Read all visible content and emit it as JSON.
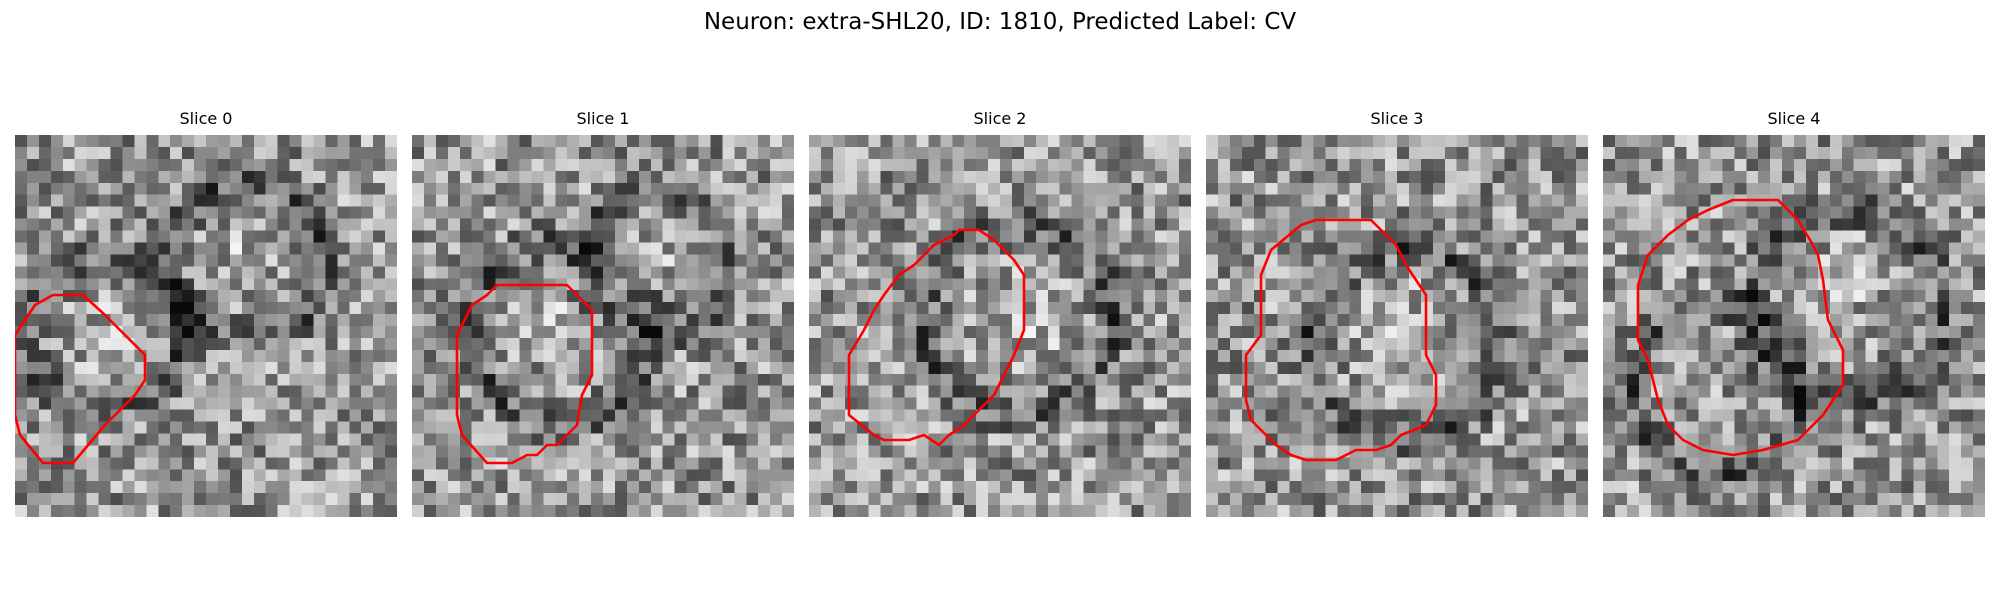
{
  "figure": {
    "title": "Neuron: extra-SHL20, ID: 1810, Predicted Label: CV",
    "colormap": "grayscale",
    "outline_color": "#ff0000"
  },
  "slices": [
    {
      "label": "Slice 0"
    },
    {
      "label": "Slice 1"
    },
    {
      "label": "Slice 2"
    },
    {
      "label": "Slice 3"
    },
    {
      "label": "Slice 4"
    }
  ]
}
